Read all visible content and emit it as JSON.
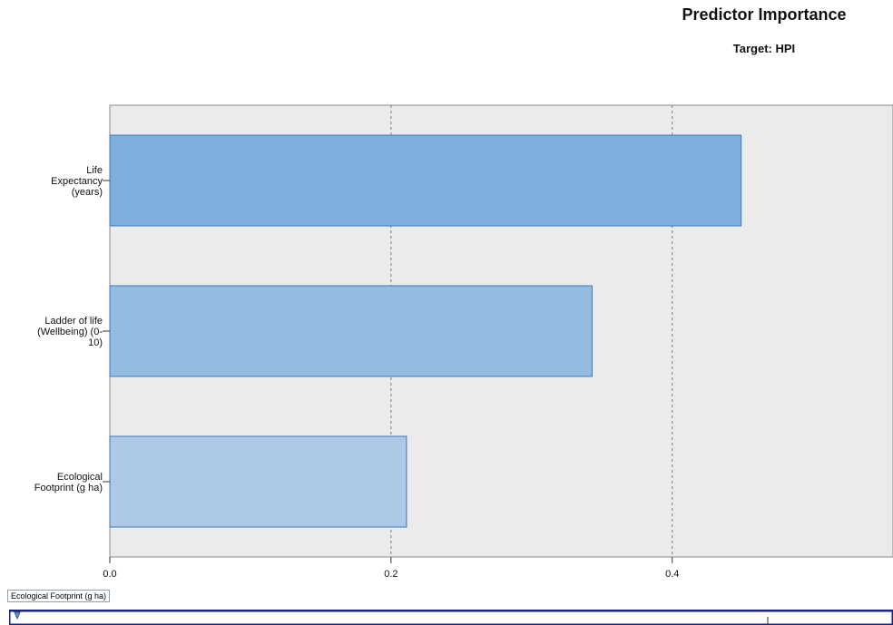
{
  "chart_data": {
    "type": "bar",
    "orientation": "horizontal",
    "title": "Predictor Importance",
    "subtitle": "Target: HPI",
    "categories": [
      "Life Expectancy (years)",
      "Ladder of life (Wellbeing) (0-10)",
      "Ecological Footprint (g ha)"
    ],
    "category_label_lines": [
      [
        "Life",
        "Expectancy",
        "(years)"
      ],
      [
        "Ladder of life",
        "(Wellbeing) (0-",
        "10)"
      ],
      [
        "Ecological",
        "Footprint (g ha)"
      ]
    ],
    "values": [
      0.449,
      0.343,
      0.211
    ],
    "xlim": [
      0,
      0.557
    ],
    "x_ticks": [
      0.0,
      0.2,
      0.4
    ],
    "x_tick_labels": [
      "0.0",
      "0.2",
      "0.4"
    ],
    "grid": "vertical dashed at 0.2 and 0.4",
    "legend": "none",
    "bar_colors": [
      "#7eaedb",
      "#94bbe0",
      "#adc9e6"
    ],
    "bar_edge_color": "#3d78bf",
    "plot_background": "#ebebeb"
  },
  "tooltip": {
    "text": "Ecological Footprint (g ha)"
  },
  "colors": {
    "slider_border": "#1a237e",
    "slider_fill": "#ffffff"
  }
}
